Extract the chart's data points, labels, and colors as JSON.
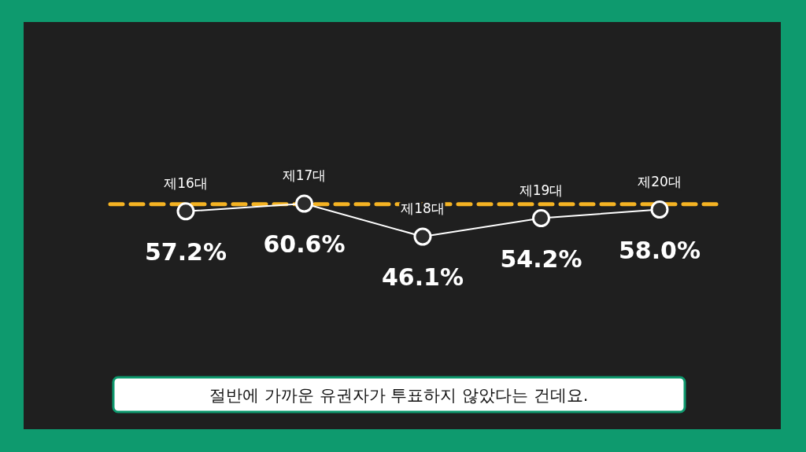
{
  "chart_data": {
    "type": "line",
    "categories": [
      "제16대",
      "제17대",
      "제18대",
      "제19대",
      "제20대"
    ],
    "series": [
      {
        "color": "#ffffff",
        "values": [
          57.2,
          60.6,
          46.1,
          54.2,
          58.0
        ],
        "value_labels": [
          "57.2%",
          "60.6%",
          "46.1%",
          "54.2%",
          "58.0%"
        ]
      }
    ],
    "marker": "circle",
    "line_style": "solid",
    "grid": false,
    "relative": false,
    "ref_lines": [
      {
        "axis": "y",
        "value": 60.3,
        "color": "#f5b323",
        "line_style": "dashed"
      }
    ],
    "annotations": [
      "절반에 가까운 유권자가 투표하지 않았다는 건데요."
    ]
  }
}
